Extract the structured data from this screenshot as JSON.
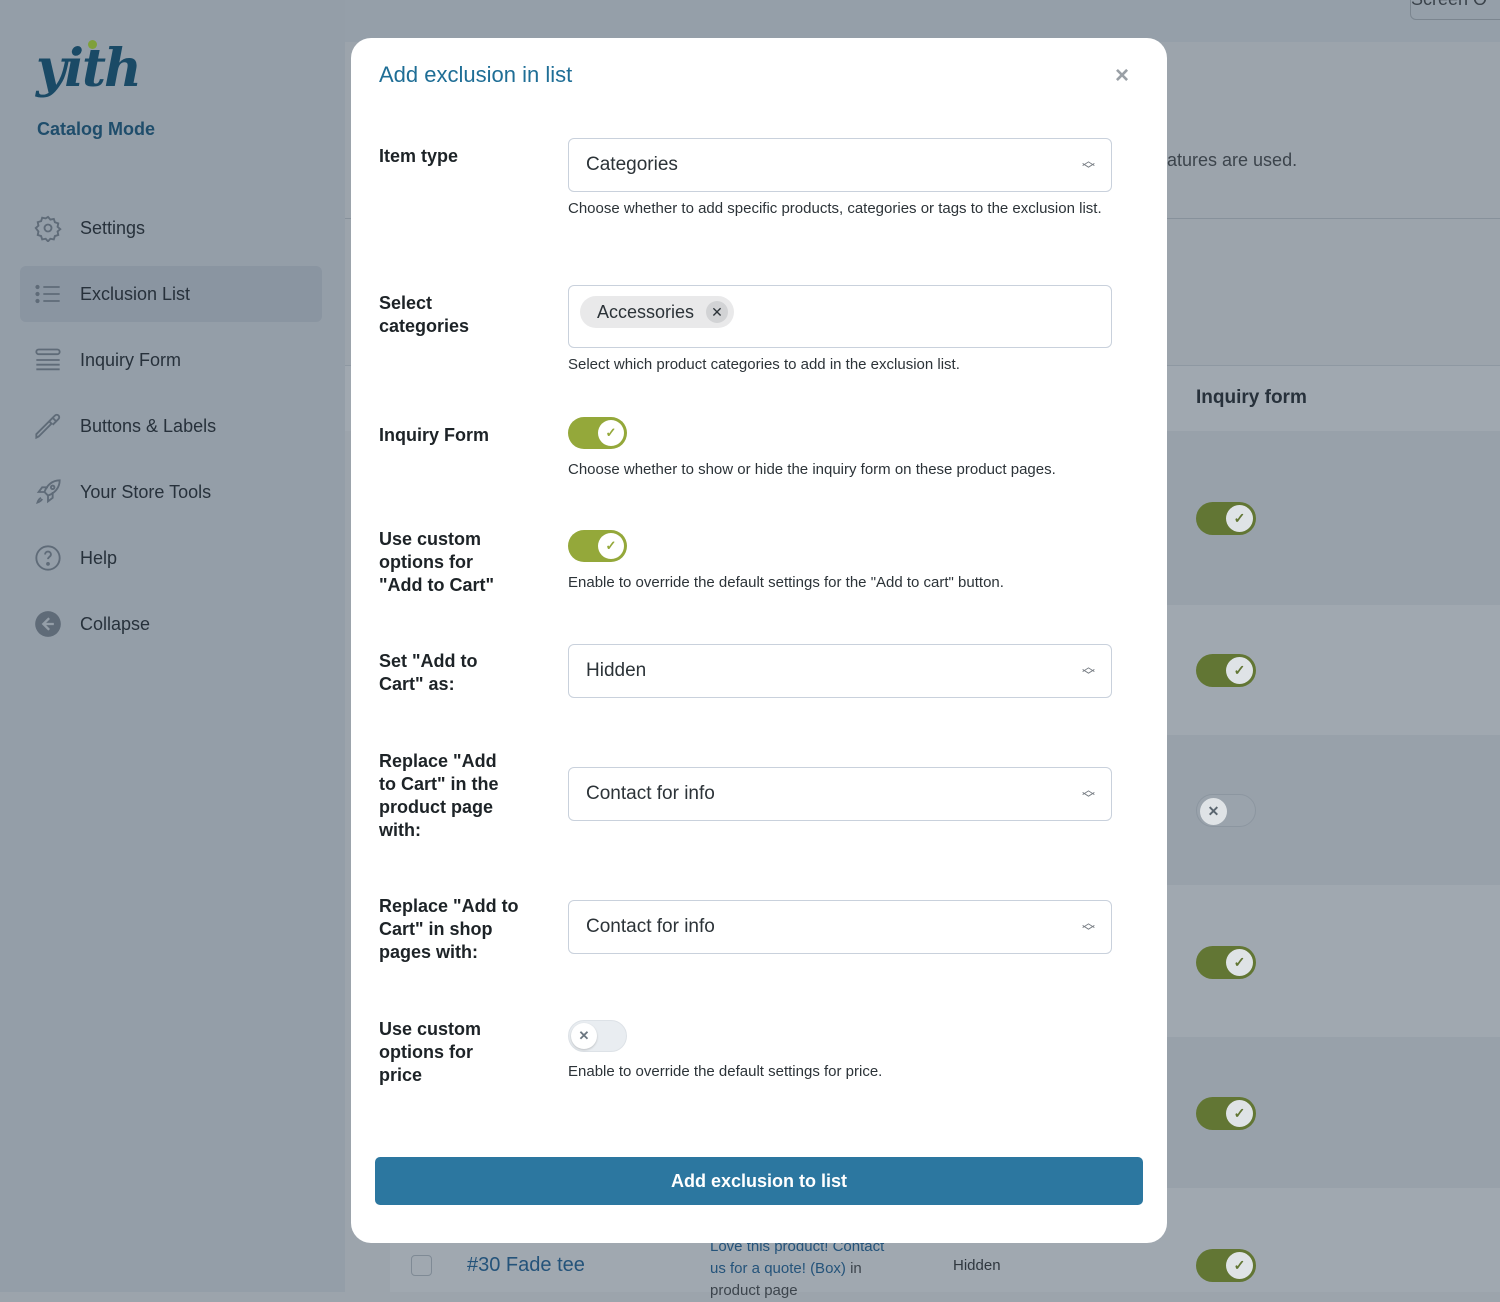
{
  "sidebar": {
    "logo": "yith",
    "plugin_name": "Catalog Mode",
    "items": [
      {
        "label": "Settings",
        "icon": "gear-icon"
      },
      {
        "label": "Exclusion List",
        "icon": "list-icon",
        "active": true
      },
      {
        "label": "Inquiry Form",
        "icon": "form-icon"
      },
      {
        "label": "Buttons & Labels",
        "icon": "eyedropper-icon"
      },
      {
        "label": "Your Store Tools",
        "icon": "rocket-icon"
      },
      {
        "label": "Help",
        "icon": "help-icon"
      },
      {
        "label": "Collapse",
        "icon": "arrow-left-circle-icon"
      }
    ]
  },
  "background": {
    "screen_options": "Screen O",
    "description_fragment": "atures are used.",
    "column_inquiry_form": "Inquiry form",
    "row_toggles": [
      true,
      true,
      false,
      true,
      true,
      true
    ],
    "last_row": {
      "name": "#30 Fade tee",
      "text_link_1": "Love this product! Contact",
      "text_link_2": "us for a quote! (Box)",
      "text_plain": " in",
      "text_3": "product page",
      "status": "Hidden"
    }
  },
  "modal": {
    "title": "Add exclusion in list",
    "close": "×",
    "item_type": {
      "label": "Item type",
      "value": "Categories",
      "help": "Choose whether to add specific products, categories or tags to the exclusion list."
    },
    "select_categories": {
      "label": "Select categories",
      "chips": [
        "Accessories"
      ],
      "help": "Select which product categories to add in the exclusion list."
    },
    "inquiry_form": {
      "label": "Inquiry Form",
      "on": true,
      "help": "Choose whether to show or hide the inquiry form on these product pages."
    },
    "custom_add_to_cart": {
      "label": "Use custom options for \"Add to Cart\"",
      "on": true,
      "help": "Enable to override the default settings for the \"Add to cart\" button."
    },
    "set_add_to_cart": {
      "label": "Set \"Add to Cart\" as:",
      "value": "Hidden"
    },
    "replace_product": {
      "label": "Replace \"Add to Cart\" in the product page with:",
      "value": "Contact for info"
    },
    "replace_shop": {
      "label": "Replace \"Add to Cart\" in shop pages with:",
      "value": "Contact for info"
    },
    "custom_price": {
      "label": "Use custom options for price",
      "on": false,
      "help": "Enable to override the default settings for price."
    },
    "submit": "Add exclusion to list"
  },
  "colors": {
    "accent": "#2c77a0",
    "toggle_on": "#94a83a",
    "title": "#1f6e96"
  }
}
